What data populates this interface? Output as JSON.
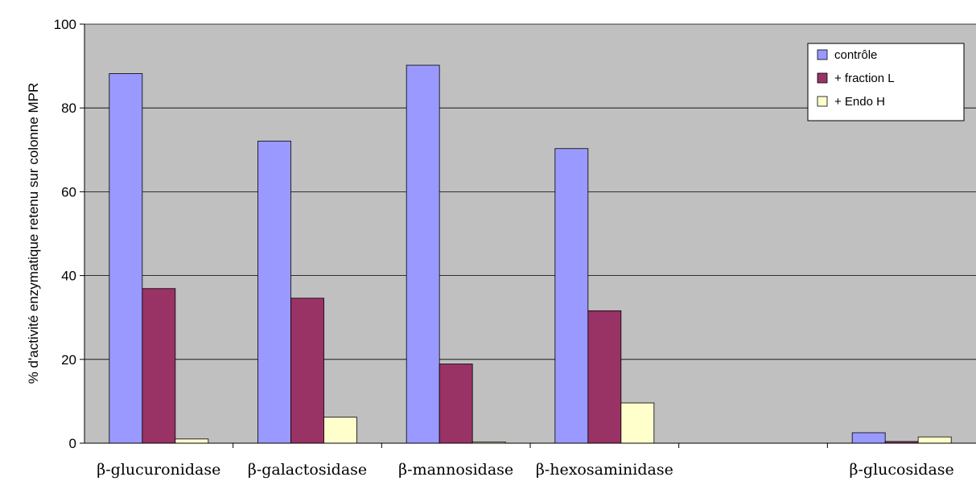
{
  "chart_data": {
    "type": "bar",
    "title": "",
    "xlabel": "",
    "ylabel": "% d'activité enzymatique retenu sur colonne MPR",
    "ylim": [
      0,
      100
    ],
    "yticks": [
      0,
      20,
      40,
      60,
      80,
      100
    ],
    "grid": true,
    "legend_position": "top-right",
    "categories": [
      "β-glucuronidase",
      "β-galactosidase",
      "β-mannosidase",
      "β-hexosaminidase",
      "",
      "β-glucosidase"
    ],
    "series": [
      {
        "name": "contrôle",
        "color": "#9999ff",
        "values": [
          88.2,
          72.1,
          90.2,
          70.3,
          null,
          2.5
        ]
      },
      {
        "name": "+ fraction L",
        "color": "#993366",
        "values": [
          36.9,
          34.6,
          18.9,
          31.6,
          null,
          0.4
        ]
      },
      {
        "name": "+ Endo H",
        "color": "#ffffcc",
        "values": [
          1.0,
          6.2,
          0.3,
          9.6,
          null,
          1.5
        ]
      }
    ]
  }
}
